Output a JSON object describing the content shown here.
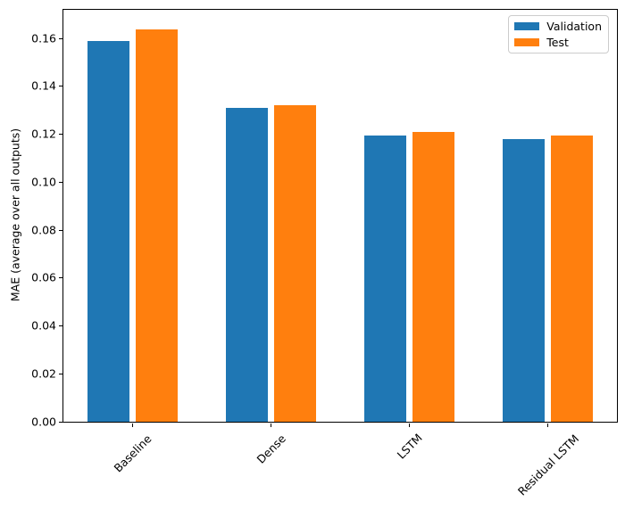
{
  "figure": {
    "background": "#ffffff"
  },
  "chart_data": {
    "type": "bar",
    "title": "",
    "xlabel": "",
    "ylabel": "MAE (average over all outputs)",
    "categories": [
      "Baseline",
      "Dense",
      "LSTM",
      "Residual LSTM"
    ],
    "series": [
      {
        "name": "Validation",
        "color": "#1f77b4",
        "values": [
          0.159,
          0.131,
          0.1195,
          0.118
        ]
      },
      {
        "name": "Test",
        "color": "#ff7f0e",
        "values": [
          0.164,
          0.132,
          0.121,
          0.1195
        ]
      }
    ],
    "ylim": [
      0,
      0.172
    ],
    "yticks": [
      0.0,
      0.02,
      0.04,
      0.06,
      0.08,
      0.1,
      0.12,
      0.14,
      0.16
    ],
    "ytick_labels": [
      "0.00",
      "0.02",
      "0.04",
      "0.06",
      "0.08",
      "0.10",
      "0.12",
      "0.14",
      "0.16"
    ],
    "xtick_rotation_deg": 45,
    "grid": false,
    "axis_color": "#000000",
    "legend": {
      "position": "upper-right",
      "border_color": "#cccccc",
      "labels": [
        "Validation",
        "Test"
      ]
    }
  }
}
